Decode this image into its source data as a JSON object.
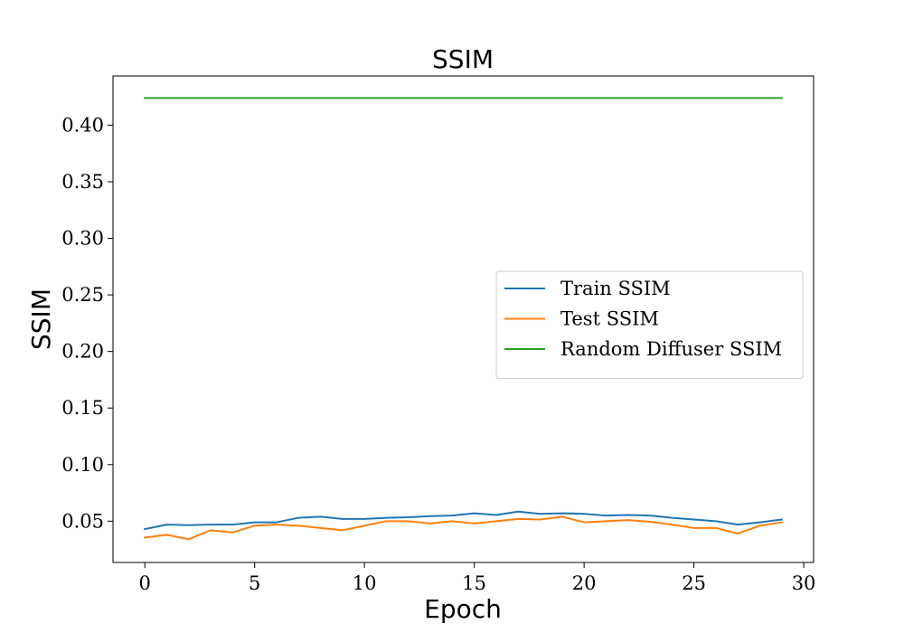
{
  "chart_data": {
    "type": "line",
    "title": "SSIM",
    "xlabel": "Epoch",
    "ylabel": "SSIM",
    "xlim": [
      -1.45,
      30.45
    ],
    "ylim": [
      0.0135,
      0.4435
    ],
    "xticks": [
      0,
      5,
      10,
      15,
      20,
      25,
      30
    ],
    "yticks": [
      0.05,
      0.1,
      0.15,
      0.2,
      0.25,
      0.3,
      0.35,
      0.4
    ],
    "grid": false,
    "legend_position": "center-right",
    "x": [
      0,
      1,
      2,
      3,
      4,
      5,
      6,
      7,
      8,
      9,
      10,
      11,
      12,
      13,
      14,
      15,
      16,
      17,
      18,
      19,
      20,
      21,
      22,
      23,
      24,
      25,
      26,
      27,
      28,
      29
    ],
    "series": [
      {
        "name": "Train SSIM",
        "color": "#1f77b4",
        "values": [
          0.043,
          0.047,
          0.0465,
          0.047,
          0.047,
          0.049,
          0.049,
          0.053,
          0.054,
          0.052,
          0.052,
          0.053,
          0.0535,
          0.0545,
          0.055,
          0.057,
          0.0555,
          0.0585,
          0.0565,
          0.057,
          0.0565,
          0.055,
          0.0555,
          0.055,
          0.053,
          0.0515,
          0.05,
          0.047,
          0.049,
          0.0515
        ]
      },
      {
        "name": "Test SSIM",
        "color": "#ff7f0e",
        "values": [
          0.0355,
          0.038,
          0.034,
          0.042,
          0.04,
          0.046,
          0.047,
          0.046,
          0.044,
          0.042,
          0.046,
          0.05,
          0.05,
          0.048,
          0.05,
          0.048,
          0.05,
          0.052,
          0.0515,
          0.054,
          0.049,
          0.05,
          0.051,
          0.0495,
          0.047,
          0.044,
          0.044,
          0.039,
          0.046,
          0.049
        ]
      },
      {
        "name": "Random Diffuser SSIM",
        "color": "#2ca02c",
        "values": [
          0.424,
          0.424,
          0.424,
          0.424,
          0.424,
          0.424,
          0.424,
          0.424,
          0.424,
          0.424,
          0.424,
          0.424,
          0.424,
          0.424,
          0.424,
          0.424,
          0.424,
          0.424,
          0.424,
          0.424,
          0.424,
          0.424,
          0.424,
          0.424,
          0.424,
          0.424,
          0.424,
          0.424,
          0.424,
          0.424
        ]
      }
    ]
  }
}
